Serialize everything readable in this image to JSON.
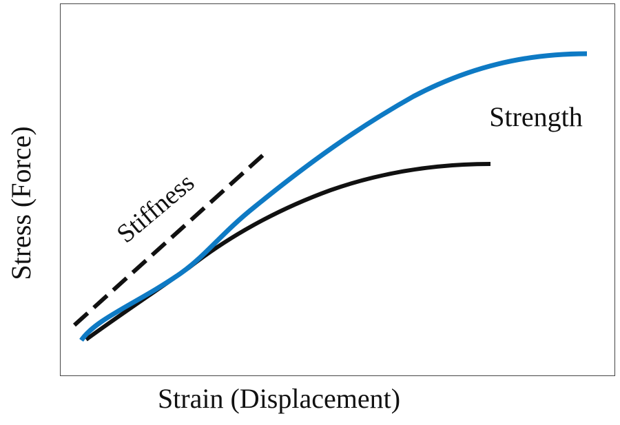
{
  "diagram": {
    "x_axis_label": "Strain (Displacement)",
    "y_axis_label": "Stress (Force)",
    "stiffness_label": "Stiffness",
    "strength_label": "Strength"
  }
}
